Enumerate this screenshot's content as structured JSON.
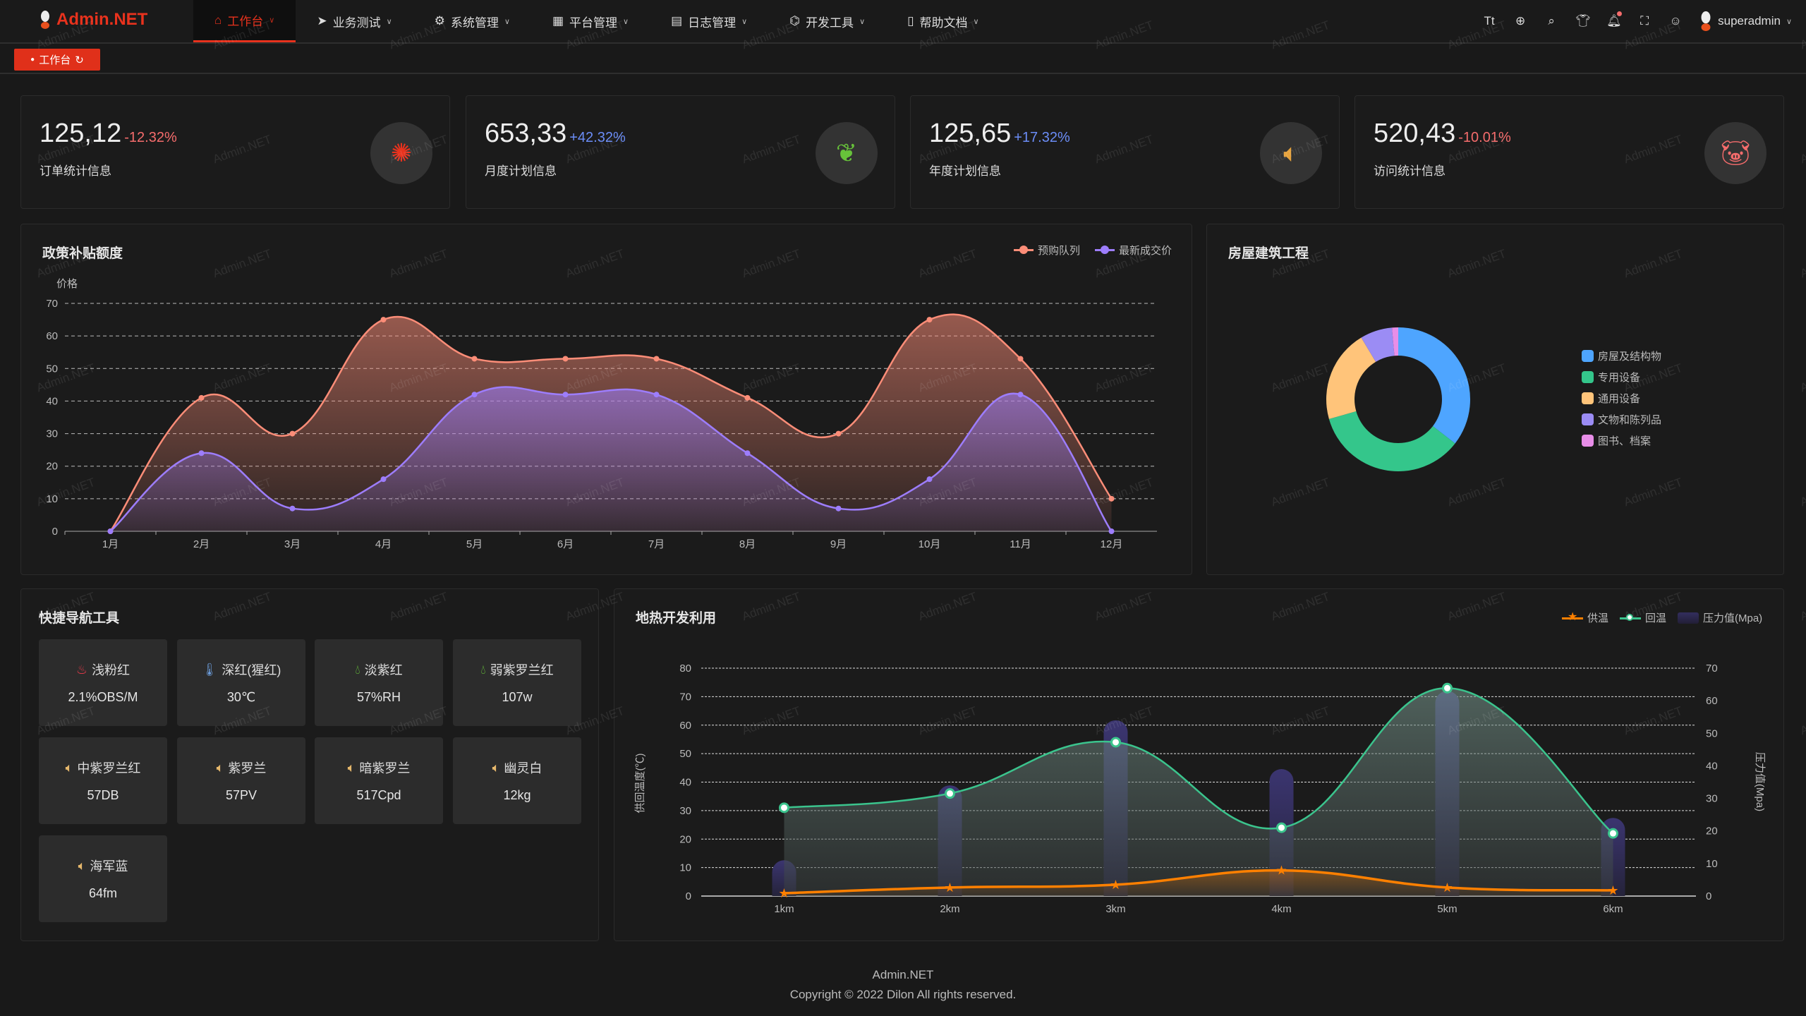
{
  "app": {
    "title": "Admin.NET",
    "watermark": "Admin.NET"
  },
  "menu": [
    {
      "label": "工作台",
      "icon": "home-icon",
      "active": true
    },
    {
      "label": "业务测试",
      "icon": "send-icon"
    },
    {
      "label": "系统管理",
      "icon": "gear-icon"
    },
    {
      "label": "平台管理",
      "icon": "grid-icon"
    },
    {
      "label": "日志管理",
      "icon": "document-icon"
    },
    {
      "label": "开发工具",
      "icon": "chip-icon"
    },
    {
      "label": "帮助文档",
      "icon": "book-icon"
    }
  ],
  "toolbar": {
    "icons": [
      "font-size-icon",
      "language-icon",
      "search-icon",
      "theme-shirt-icon",
      "bell-icon",
      "fullscreen-icon",
      "user-icon"
    ],
    "username": "superadmin"
  },
  "tags": [
    {
      "label": "工作台",
      "active": true
    }
  ],
  "stats": [
    {
      "value": "125,12",
      "change": "-12.32%",
      "change_color": "#f56c6c",
      "label": "订单统计信息",
      "icon": "brand-badge-icon",
      "icon_color": "#e8321d"
    },
    {
      "value": "653,33",
      "change": "+42.32%",
      "change_color": "#6b8df7",
      "label": "月度计划信息",
      "icon": "china-map-icon",
      "icon_color": "#67c23a"
    },
    {
      "value": "125,65",
      "change": "+17.32%",
      "change_color": "#6b8df7",
      "label": "年度计划信息",
      "icon": "speaker-icon",
      "icon_color": "#e6a23c"
    },
    {
      "value": "520,43",
      "change": "-10.01%",
      "change_color": "#f56c6c",
      "label": "访问统计信息",
      "icon": "pig-icon",
      "icon_color": "#f56c6c"
    }
  ],
  "quick_nav": {
    "title": "快捷导航工具",
    "items": [
      {
        "label": "浅粉红",
        "value": "2.1%OBS/M",
        "icon": "cake-icon",
        "icon_color": "#e83a4a"
      },
      {
        "label": "深红(猩红)",
        "value": "30℃",
        "icon": "thermometer-icon",
        "icon_color": "#6b9bd8"
      },
      {
        "label": "淡紫红",
        "value": "57%RH",
        "icon": "water-drop-icon",
        "icon_color": "#67c23a"
      },
      {
        "label": "弱紫罗兰红",
        "value": "107w",
        "icon": "water-drop-icon",
        "icon_color": "#67c23a"
      },
      {
        "label": "中紫罗兰红",
        "value": "57DB",
        "icon": "speaker-icon",
        "icon_color": "#e6b86c"
      },
      {
        "label": "紫罗兰",
        "value": "57PV",
        "icon": "speaker-icon",
        "icon_color": "#e6b86c"
      },
      {
        "label": "暗紫罗兰",
        "value": "517Cpd",
        "icon": "speaker-icon",
        "icon_color": "#e6b86c"
      },
      {
        "label": "幽灵白",
        "value": "12kg",
        "icon": "speaker-icon",
        "icon_color": "#e6b86c"
      },
      {
        "label": "海军蓝",
        "value": "64fm",
        "icon": "speaker-icon",
        "icon_color": "#e6b86c"
      }
    ]
  },
  "chart_data": [
    {
      "type": "area",
      "title": "政策补贴额度",
      "ylabel": "价格",
      "ylim": [
        0,
        70
      ],
      "yticks": [
        0,
        10,
        20,
        30,
        40,
        50,
        60,
        70
      ],
      "grid": true,
      "legend_position": "top-right",
      "categories": [
        "1月",
        "2月",
        "3月",
        "4月",
        "5月",
        "6月",
        "7月",
        "8月",
        "9月",
        "10月",
        "11月",
        "12月"
      ],
      "series": [
        {
          "name": "预购队列",
          "color": "#fc8d78",
          "values": [
            0,
            41,
            30,
            65,
            53,
            53,
            53,
            41,
            30,
            65,
            53,
            10
          ]
        },
        {
          "name": "最新成交价",
          "color": "#9d7dfc",
          "values": [
            0,
            24,
            7,
            16,
            42,
            42,
            42,
            24,
            7,
            16,
            42,
            0
          ]
        }
      ]
    },
    {
      "type": "pie",
      "title": "房屋建筑工程",
      "donut": true,
      "legend_position": "right",
      "slices": [
        {
          "name": "房屋及结构物",
          "value": 35.5,
          "color": "#4ea5ff"
        },
        {
          "name": "专用设备",
          "value": 35.1,
          "color": "#34c68b"
        },
        {
          "name": "通用设备",
          "value": 20.8,
          "color": "#ffc47a"
        },
        {
          "name": "文物和陈列品",
          "value": 7.2,
          "color": "#9b8cf4"
        },
        {
          "name": "图书、档案",
          "value": 1.4,
          "color": "#e88ee8"
        }
      ]
    },
    {
      "type": "line+bar",
      "title": "地热开发利用",
      "legend_position": "top-right",
      "grid": true,
      "categories": [
        "1km",
        "2km",
        "3km",
        "4km",
        "5km",
        "6km"
      ],
      "ylabel_left": "供回温度(℃)",
      "ylim_left": [
        0,
        80
      ],
      "yticks_left": [
        0,
        10,
        20,
        30,
        40,
        50,
        60,
        70,
        80
      ],
      "ylabel_right": "压力值(Mpa)",
      "ylim_right": [
        0,
        70
      ],
      "yticks_right": [
        0,
        10,
        20,
        30,
        40,
        50,
        60,
        70
      ],
      "series": [
        {
          "name": "供温",
          "type": "line",
          "axis": "left",
          "color": "#ff8000",
          "marker": "star",
          "values": [
            1,
            3,
            4,
            9,
            3,
            2
          ]
        },
        {
          "name": "回温",
          "type": "line",
          "axis": "left",
          "color": "#3bc48d",
          "marker": "circle",
          "values": [
            31,
            36,
            54,
            24,
            73,
            22
          ]
        },
        {
          "name": "压力值(Mpa)",
          "type": "bar",
          "axis": "right",
          "color": "#332e5e",
          "values": [
            11,
            34,
            54,
            39,
            63,
            24
          ]
        }
      ]
    }
  ],
  "footer": {
    "line1": "Admin.NET",
    "line2": "Copyright © 2022 Dilon All rights reserved."
  }
}
